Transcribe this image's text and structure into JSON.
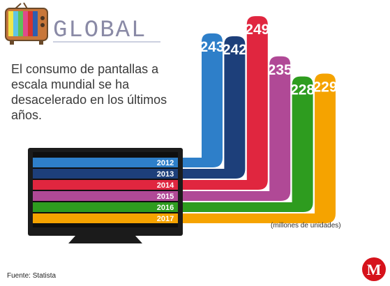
{
  "header": {
    "brand": "GLOBAL",
    "brand_color": "#8a8aa6",
    "tv_icon": "retro-tv-icon"
  },
  "headline": "El consumo de pantallas a escala mundial se ha desacelerado en los últimos años.",
  "chart_data": {
    "type": "bar",
    "categories": [
      "2012",
      "2013",
      "2014",
      "2015",
      "2016",
      "2017"
    ],
    "values": [
      243,
      242,
      249,
      235,
      228,
      229
    ],
    "value_labels": [
      "243",
      "242",
      "249",
      "235",
      "228",
      "229"
    ],
    "colors": [
      "#2e7fc9",
      "#1d3f7a",
      "#e0263f",
      "#b04996",
      "#2e9c1f",
      "#f5a300"
    ],
    "ylim": [
      200,
      250
    ],
    "unit": "(millones de unidades)"
  },
  "footer": {
    "source": "Fuente: Statista",
    "logo_letter": "M",
    "logo_color": "#d6121b"
  }
}
